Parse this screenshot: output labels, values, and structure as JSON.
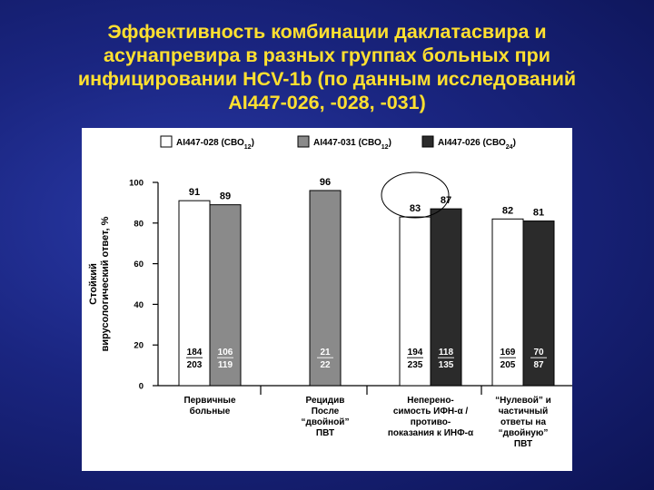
{
  "slide": {
    "title": "Эффективность комбинации даклатасвира и\nасунапревира в разных группах больных при\nинфицировании HCV-1b (по данным исследований\nAI447-026, -028, -031)"
  },
  "colors": {
    "background": "#1a2580",
    "title": "#ffe030",
    "series": [
      "#ffffff",
      "#8a8a8a",
      "#2b2b2b"
    ]
  },
  "chart_data": {
    "type": "bar",
    "ylabel": "Стойкий вирусологический ответ, %",
    "ylim": [
      0,
      100
    ],
    "yticks": [
      0,
      20,
      40,
      60,
      80,
      100
    ],
    "legend": {
      "placement": "top",
      "items": [
        {
          "id": "AI447-028 (СВО12)",
          "main": "AI447-028 (СВО",
          "sub": "12",
          "end": ")"
        },
        {
          "id": "AI447-031 (СВО12)",
          "main": "AI447-031 (СВО",
          "sub": "12",
          "end": ")"
        },
        {
          "id": "AI447-026 (СВО24)",
          "main": "AI447-026 (СВО",
          "sub": "24",
          "end": ")"
        }
      ]
    },
    "groups": [
      {
        "label": "Первичные\nбольные",
        "bars": [
          {
            "series": 0,
            "value": 91,
            "n": "184",
            "total": "203"
          },
          {
            "series": 1,
            "value": 89,
            "n": "106",
            "total": "119"
          }
        ]
      },
      {
        "label": "Рецидив\nПосле\n“двойной”\nПВТ",
        "bars": [
          {
            "series": 1,
            "value": 96,
            "n": "21",
            "total": "22"
          }
        ]
      },
      {
        "label": "Неперено-\nсимость ИФН-α /\nпротиво-\nпоказания к ИНФ-α",
        "bars": [
          {
            "series": 0,
            "value": 83,
            "n": "194",
            "total": "235"
          },
          {
            "series": 2,
            "value": 87,
            "n": "118",
            "total": "135"
          }
        ]
      },
      {
        "label": "“Нулевой” и\nчастичный\nответы на\n“двойную”\nПВТ",
        "bars": [
          {
            "series": 0,
            "value": 82,
            "n": "169",
            "total": "205"
          },
          {
            "series": 2,
            "value": 81,
            "n": "70",
            "total": "87"
          }
        ]
      }
    ]
  }
}
